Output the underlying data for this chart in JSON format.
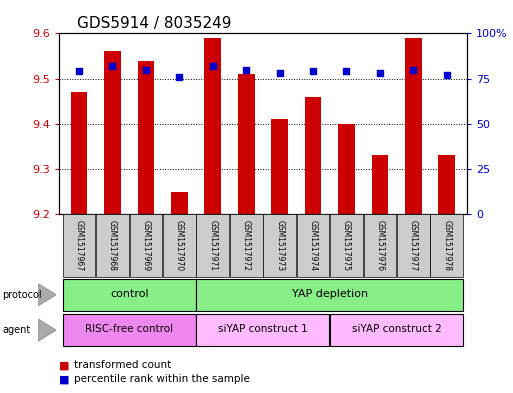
{
  "title": "GDS5914 / 8035249",
  "samples": [
    "GSM1517967",
    "GSM1517968",
    "GSM1517969",
    "GSM1517970",
    "GSM1517971",
    "GSM1517972",
    "GSM1517973",
    "GSM1517974",
    "GSM1517975",
    "GSM1517976",
    "GSM1517977",
    "GSM1517978"
  ],
  "transformed_count": [
    9.47,
    9.56,
    9.54,
    9.25,
    9.59,
    9.51,
    9.41,
    9.46,
    9.4,
    9.33,
    9.59,
    9.33
  ],
  "percentile_rank": [
    79,
    82,
    80,
    76,
    82,
    80,
    78,
    79,
    79,
    78,
    80,
    77
  ],
  "ylim_left": [
    9.2,
    9.6
  ],
  "ylim_right": [
    0,
    100
  ],
  "yticks_left": [
    9.2,
    9.3,
    9.4,
    9.5,
    9.6
  ],
  "yticks_right": [
    0,
    25,
    50,
    75,
    100
  ],
  "ytick_labels_right": [
    "0",
    "25",
    "50",
    "75",
    "100%"
  ],
  "bar_color": "#cc0000",
  "dot_color": "#0000cc",
  "grid_color": "#000000",
  "bar_width": 0.5,
  "protocol_color": "#88ee88",
  "agent_color_risc": "#ee88ee",
  "agent_color_siyap": "#ffbbff",
  "legend_items": [
    "transformed count",
    "percentile rank within the sample"
  ],
  "tick_label_color_left": "#cc0000",
  "tick_label_color_right": "#0000cc",
  "title_fontsize": 11,
  "tick_fontsize": 8,
  "bg_color": "#ffffff",
  "sample_label_bg": "#cccccc"
}
